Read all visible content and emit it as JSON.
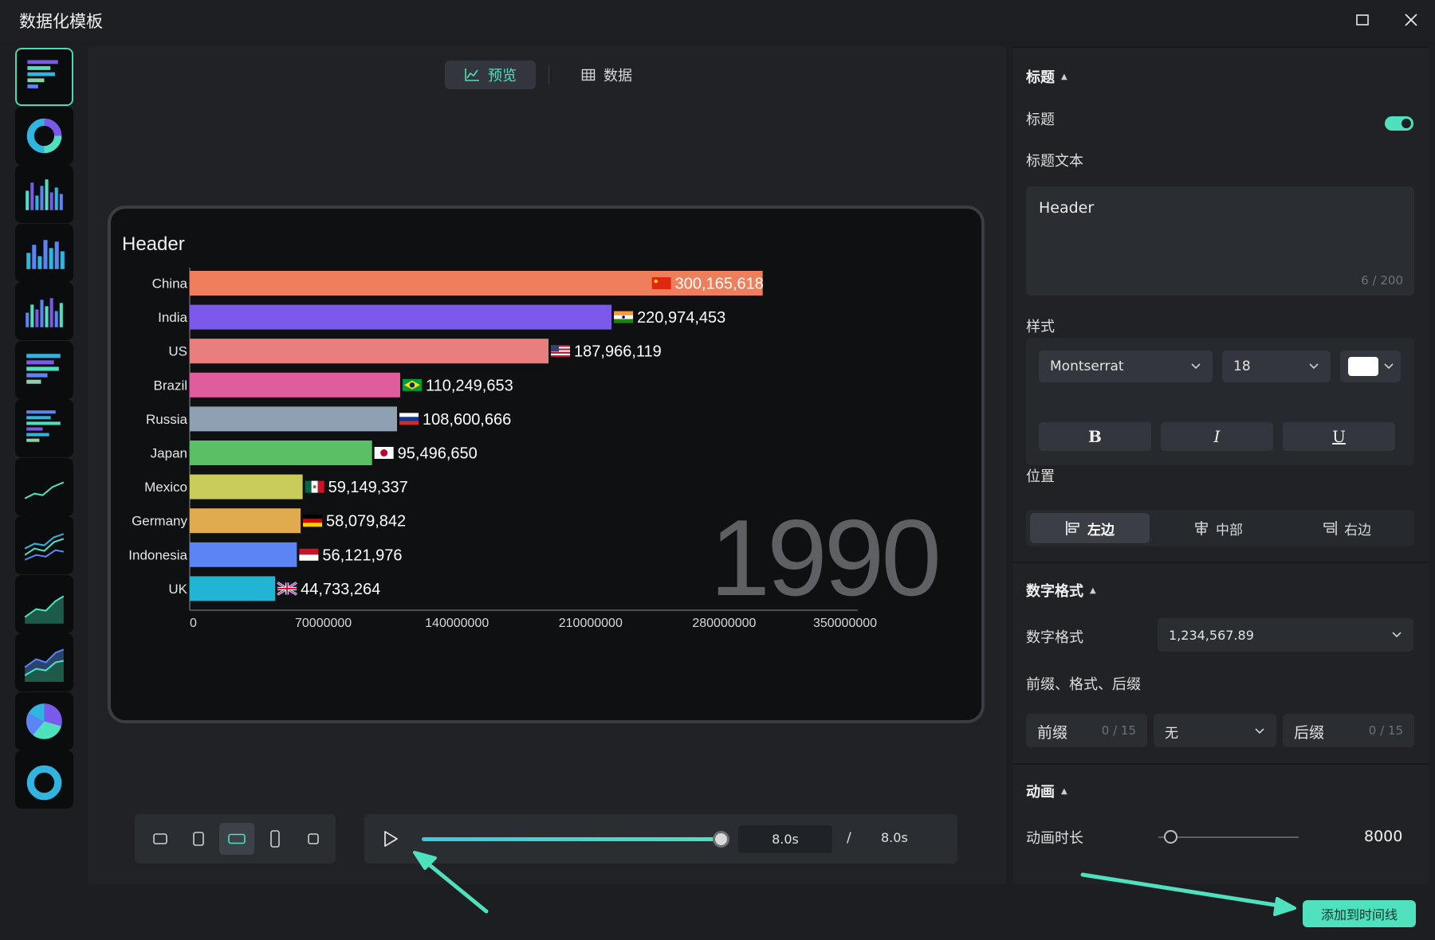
{
  "window": {
    "title": "数据化模板"
  },
  "tabs": [
    {
      "label": "预览",
      "icon": "chart-line-icon",
      "active": true
    },
    {
      "label": "数据",
      "icon": "table-icon",
      "active": false
    }
  ],
  "rail": {
    "templates": [
      {
        "name": "bar-race-horizontal",
        "active": true
      },
      {
        "name": "donut"
      },
      {
        "name": "column-multi"
      },
      {
        "name": "column-blue"
      },
      {
        "name": "column-grouped"
      },
      {
        "name": "bar-horizontal"
      },
      {
        "name": "bar-horizontal-alt"
      },
      {
        "name": "line-single"
      },
      {
        "name": "line-multi"
      },
      {
        "name": "area-single"
      },
      {
        "name": "area-multi"
      },
      {
        "name": "pie"
      },
      {
        "name": "donut-partial"
      }
    ]
  },
  "chart_data": {
    "type": "bar",
    "title": "Header",
    "watermark": "1990",
    "categories": [
      "China",
      "India",
      "US",
      "Brazil",
      "Russia",
      "Japan",
      "Mexico",
      "Germany",
      "Indonesia",
      "UK"
    ],
    "values": [
      300165618,
      220974453,
      187966119,
      110249653,
      108600666,
      95496650,
      59149337,
      58079842,
      56121976,
      44733264
    ],
    "value_labels": [
      "300,165,618",
      "220,974,453",
      "187,966,119",
      "110,249,653",
      "108,600,666",
      "95,496,650",
      "59,149,337",
      "58,079,842",
      "56,121,976",
      "44,733,264"
    ],
    "colors": [
      "#ee7f5c",
      "#7a59eb",
      "#e87e7e",
      "#df5d9c",
      "#8fa0b3",
      "#5bbf66",
      "#c9cc5a",
      "#e0aa4e",
      "#5b84f5",
      "#22b4d3"
    ],
    "flags": [
      "cn",
      "in",
      "us",
      "br",
      "ru",
      "jp",
      "mx",
      "de",
      "id",
      "uk"
    ],
    "x_ticks": [
      "0",
      "70000000",
      "140000000",
      "210000000",
      "280000000",
      "350000000"
    ],
    "xlim": [
      0,
      350000000
    ]
  },
  "aspect_ratios": [
    {
      "name": "ratio-landscape",
      "active": false
    },
    {
      "name": "ratio-portrait",
      "active": false
    },
    {
      "name": "ratio-wide",
      "active": true
    },
    {
      "name": "ratio-tall",
      "active": false
    },
    {
      "name": "ratio-square",
      "active": false
    }
  ],
  "player": {
    "current": "8.0s",
    "separator": "/",
    "total": "8.0s",
    "progress": 1.0
  },
  "panel": {
    "title_section": {
      "header": "标题",
      "toggle_label": "标题",
      "toggle_on": true,
      "text_label": "标题文本",
      "text_value": "Header",
      "text_count": "6 / 200"
    },
    "style": {
      "label": "样式",
      "font": "Montserrat",
      "size": "18",
      "color": "#ffffff",
      "bold": "B",
      "italic": "I",
      "underline": "U"
    },
    "position": {
      "label": "位置",
      "options": [
        {
          "label": "左边",
          "icon": "align-left-icon",
          "active": true
        },
        {
          "label": "中部",
          "icon": "align-center-icon",
          "active": false
        },
        {
          "label": "右边",
          "icon": "align-right-icon",
          "active": false
        }
      ]
    },
    "number_format": {
      "header": "数字格式",
      "label": "数字格式",
      "value": "1,234,567.89",
      "affix_label": "前缀、格式、后缀",
      "prefix_label": "前缀",
      "prefix_count": "0 / 15",
      "format_value": "无",
      "suffix_label": "后缀",
      "suffix_count": "0 / 15"
    },
    "animation": {
      "header": "动画",
      "duration_label": "动画时长",
      "duration_value": "8000"
    }
  },
  "footer": {
    "add_button": "添加到时间线"
  },
  "colors": {
    "accent": "#4fe0bd",
    "background": "#1c1e21",
    "panel": "#202226"
  }
}
